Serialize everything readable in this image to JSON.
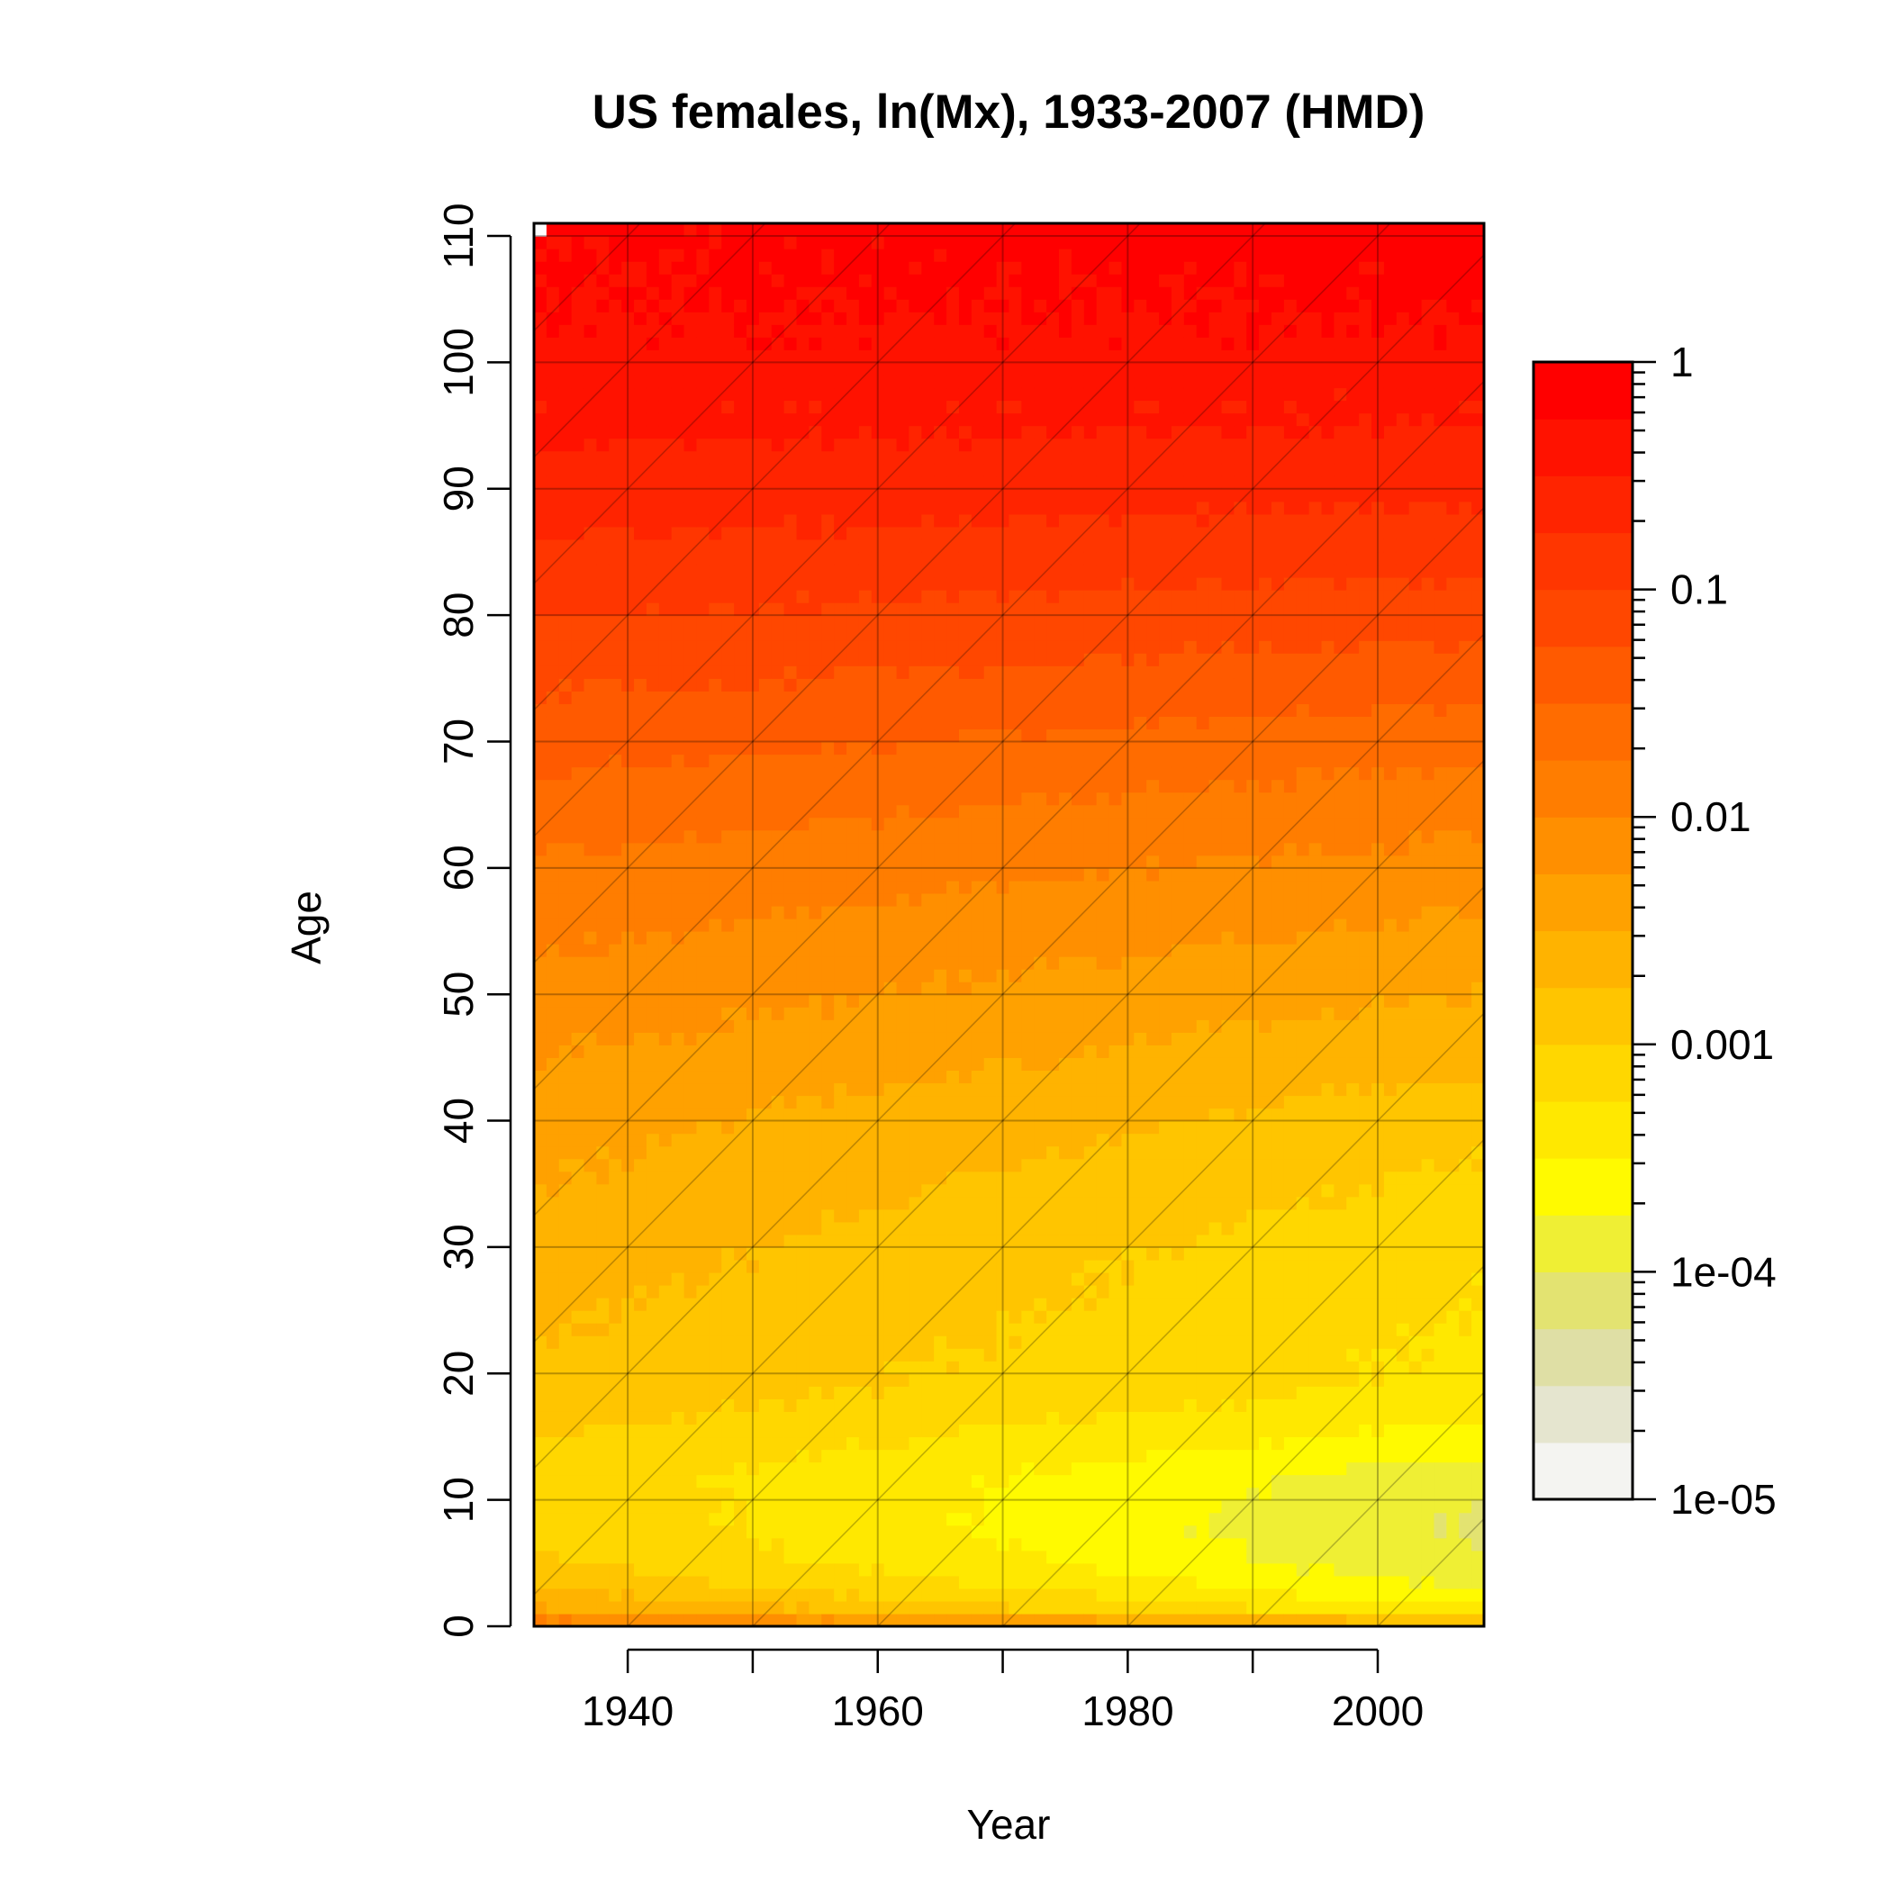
{
  "chart_data": {
    "type": "heatmap",
    "title": "US females, ln(Mx), 1933-2007 (HMD)",
    "xlabel": "Year",
    "ylabel": "Age",
    "x_range": [
      1933,
      2007
    ],
    "y_range": [
      0,
      110
    ],
    "x_ticks": [
      "1940",
      "1960",
      "1980",
      "2000"
    ],
    "x_tick_values": [
      1940,
      1960,
      1980,
      2000
    ],
    "y_ticks": [
      "0",
      "10",
      "20",
      "30",
      "40",
      "50",
      "60",
      "70",
      "80",
      "90",
      "100",
      "110"
    ],
    "y_tick_values": [
      0,
      10,
      20,
      30,
      40,
      50,
      60,
      70,
      80,
      90,
      100,
      110
    ],
    "grid": true,
    "cohort_diagonals": true,
    "colorbar": {
      "scale": "log",
      "range": [
        1e-05,
        1
      ],
      "labels": [
        "1",
        "0.1",
        "0.01",
        "0.001",
        "1e-04",
        "1e-05"
      ],
      "label_values": [
        1,
        0.1,
        0.01,
        0.001,
        0.0001,
        1e-05
      ],
      "n_bins": 20,
      "palette": "heat",
      "low_color": "#FFFFE6",
      "high_color": "#FF0000",
      "placement": "right"
    },
    "mortality_profile": {
      "age_points": [
        0,
        1,
        3,
        5,
        8,
        12,
        15,
        18,
        20,
        25,
        30,
        35,
        40,
        45,
        50,
        55,
        60,
        65,
        70,
        75,
        80,
        85,
        90,
        95,
        100,
        105,
        110
      ],
      "log10_mx_1933": [
        -1.6,
        -2.4,
        -2.75,
        -2.95,
        -3.05,
        -3.1,
        -3.0,
        -2.85,
        -2.8,
        -2.7,
        -2.6,
        -2.5,
        -2.4,
        -2.25,
        -2.1,
        -1.95,
        -1.8,
        -1.6,
        -1.4,
        -1.2,
        -1.0,
        -0.8,
        -0.6,
        -0.45,
        -0.35,
        -0.25,
        -0.2
      ],
      "log10_mx_2007": [
        -2.3,
        -3.4,
        -3.75,
        -3.95,
        -4.05,
        -3.9,
        -3.6,
        -3.35,
        -3.3,
        -3.25,
        -3.2,
        -3.05,
        -2.9,
        -2.7,
        -2.5,
        -2.3,
        -2.1,
        -1.9,
        -1.65,
        -1.4,
        -1.15,
        -0.9,
        -0.7,
        -0.5,
        -0.35,
        -0.22,
        -0.1
      ]
    }
  }
}
